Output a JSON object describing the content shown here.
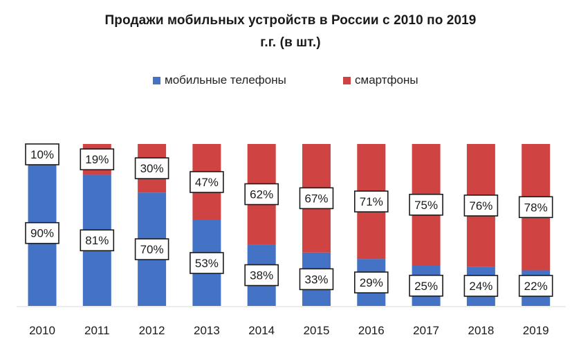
{
  "chart_data": {
    "type": "bar",
    "stacked": true,
    "percent_stacked": true,
    "title_lines": [
      "Продажи мобильных устройств в России с 2010  по 2019",
      "г.г. (в шт.)"
    ],
    "categories": [
      "2010",
      "2011",
      "2012",
      "2013",
      "2014",
      "2015",
      "2016",
      "2017",
      "2018",
      "2019"
    ],
    "series": [
      {
        "name": "мобильные телефоны",
        "color": "#4472c4",
        "values": [
          90,
          81,
          70,
          53,
          38,
          33,
          29,
          25,
          24,
          22
        ],
        "labels": [
          "90%",
          "81%",
          "70%",
          "53%",
          "38%",
          "33%",
          "29%",
          "25%",
          "24%",
          "22%"
        ]
      },
      {
        "name": "смартфоны",
        "color": "#d04343",
        "values": [
          10,
          19,
          30,
          47,
          62,
          67,
          71,
          75,
          76,
          78
        ],
        "labels": [
          "10%",
          "19%",
          "30%",
          "47%",
          "62%",
          "67%",
          "71%",
          "75%",
          "76%",
          "78%"
        ]
      }
    ],
    "ylim": [
      0,
      100
    ],
    "xlabel": "",
    "ylabel": "",
    "legend_position": "top",
    "grid": false
  }
}
